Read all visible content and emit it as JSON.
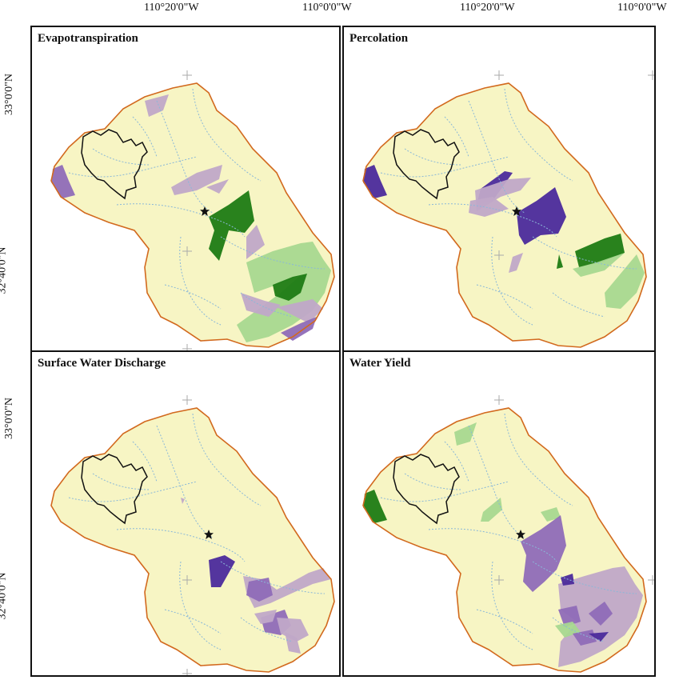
{
  "top_labels": [
    "110°20'0\"W",
    "110°0'0\"W"
  ],
  "lat_labels": [
    "33°0'0\"N",
    "32°40'0\"N"
  ],
  "panels": [
    {
      "title": "Evapotranspiration"
    },
    {
      "title": "Percolation"
    },
    {
      "title": "Surface Water Discharge"
    },
    {
      "title": "Water Yield"
    }
  ],
  "colors": {
    "basin_fill": "#f7f5c4",
    "basin_outline": "#d2691e",
    "stream": "#8ab8d8",
    "dark_green": "#1e7b14",
    "light_green": "#a8d890",
    "dark_purple": "#4b2a9c",
    "mid_purple": "#8f6bb8",
    "light_purple": "#c0a8c8"
  }
}
